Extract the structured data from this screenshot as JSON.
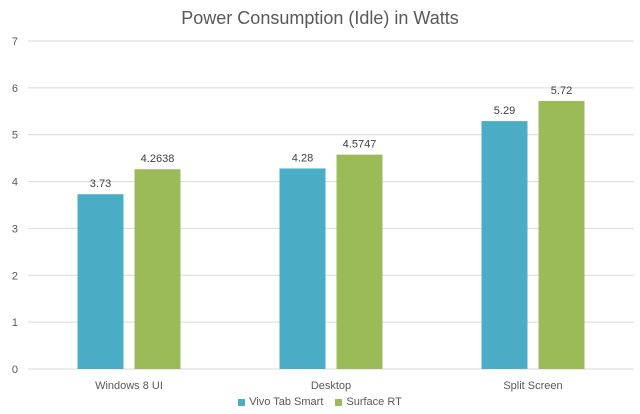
{
  "chart_data": {
    "type": "bar",
    "title": "Power Consumption (Idle) in Watts",
    "categories": [
      "Windows 8 UI",
      "Desktop",
      "Split Screen"
    ],
    "series": [
      {
        "name": "Vivo Tab Smart",
        "values": [
          3.73,
          4.28,
          5.29
        ],
        "labels": [
          "3.73",
          "4.28",
          "5.29"
        ],
        "color": "#4BACC6"
      },
      {
        "name": "Surface RT",
        "values": [
          4.2638,
          4.5747,
          5.72
        ],
        "labels": [
          "4.2638",
          "4.5747",
          "5.72"
        ],
        "color": "#9BBB59"
      }
    ],
    "ylim": [
      0,
      7
    ],
    "yticks": [
      "0",
      "1",
      "2",
      "3",
      "4",
      "5",
      "6",
      "7"
    ],
    "grid": true,
    "legend_position": "bottom"
  }
}
